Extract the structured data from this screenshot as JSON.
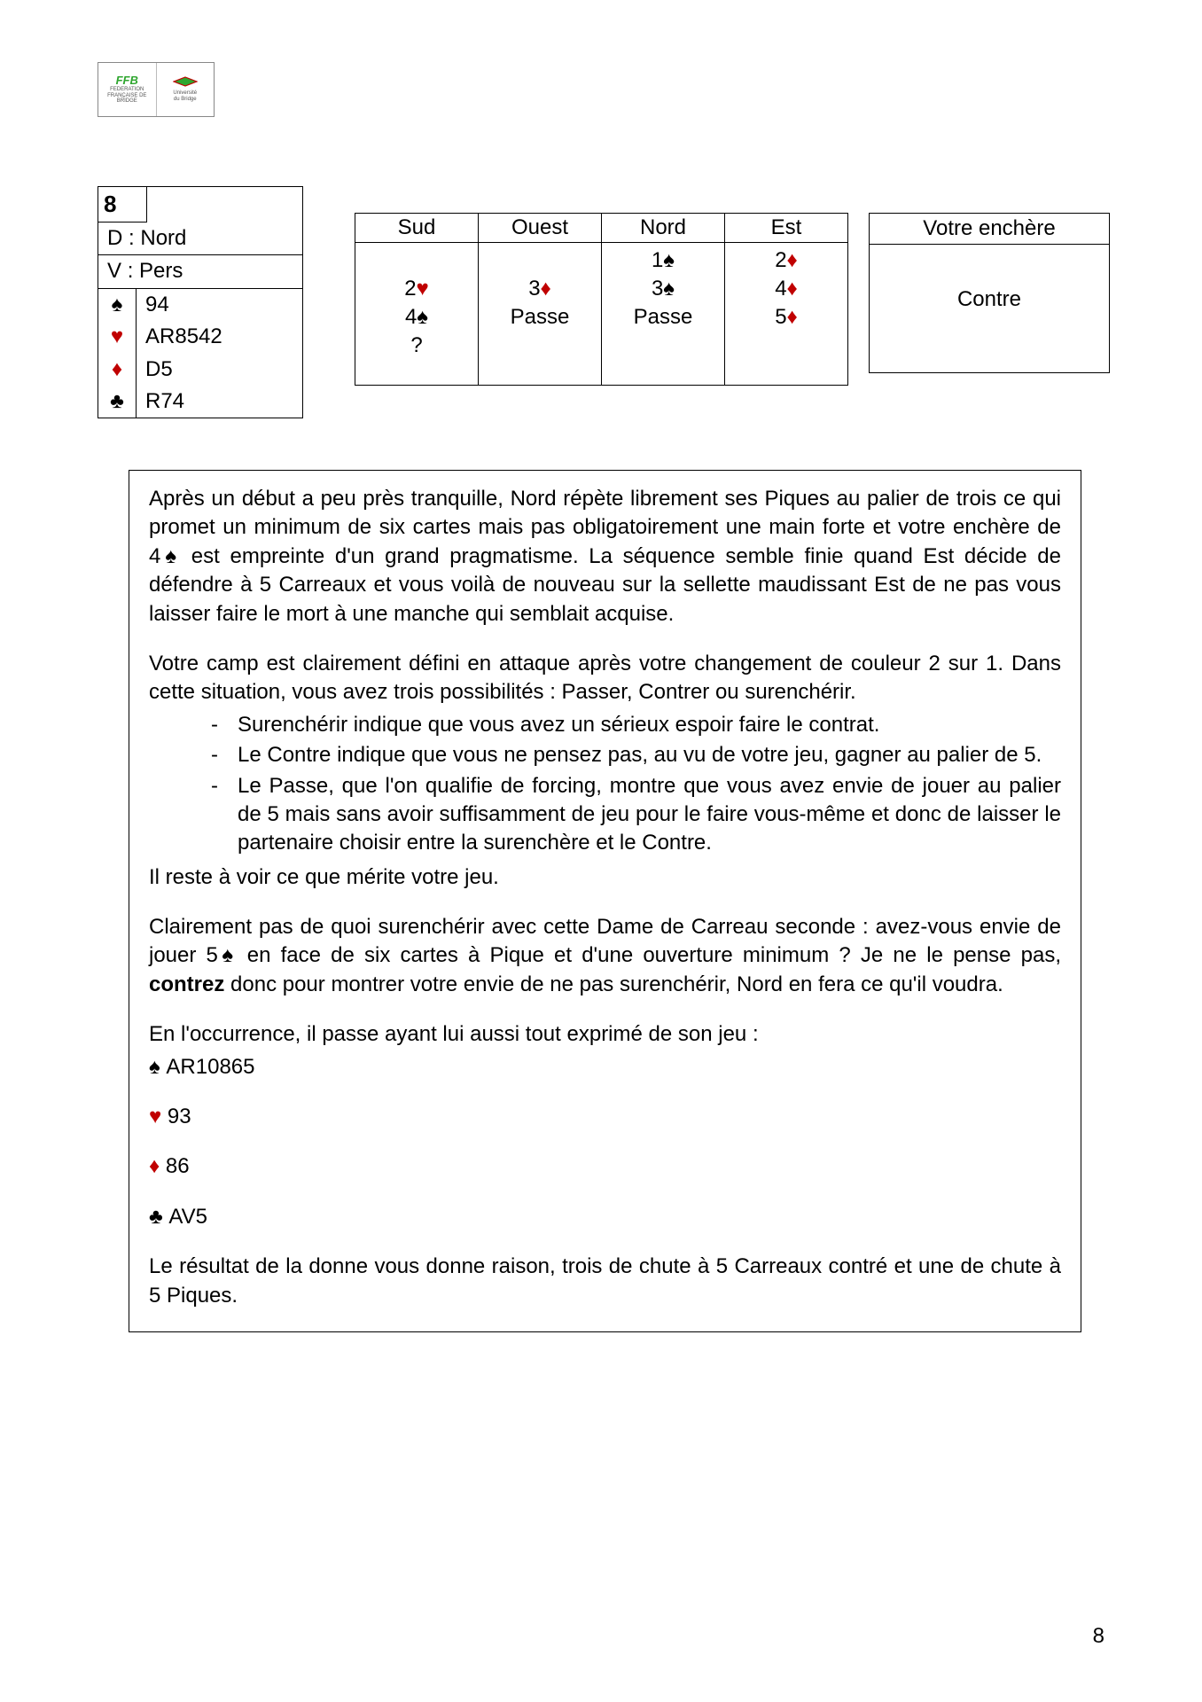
{
  "colors": {
    "red_suit": "#c00000",
    "black_suit": "#000000",
    "logo_green": "#2fa62f",
    "border": "#000000",
    "text": "#000000",
    "background": "#ffffff"
  },
  "typography": {
    "body_fontsize_pt": 18,
    "board_fontsize_pt": 20,
    "family": "Verdana"
  },
  "suit_glyphs": {
    "spade": "♠",
    "heart": "♥",
    "diamond": "♦",
    "club": "♣"
  },
  "logo": {
    "ffb_mark": "FFB",
    "ffb_caption": "FEDERATION FRANÇAISE DE BRIDGE",
    "uni_line1": "Université",
    "uni_line2": "du Bridge"
  },
  "hand_box": {
    "board_number": "8",
    "dealer_label": "D",
    "dealer_value": "Nord",
    "vul_label": "V",
    "vul_value": "Pers",
    "suits": [
      {
        "suit": "spade",
        "cards": "94"
      },
      {
        "suit": "heart",
        "cards": "AR8542"
      },
      {
        "suit": "diamond",
        "cards": "D5"
      },
      {
        "suit": "club",
        "cards": "R74"
      }
    ]
  },
  "bidding": {
    "headers": [
      "Sud",
      "Ouest",
      "Nord",
      "Est"
    ],
    "rows": [
      [
        {
          "text": ""
        },
        {
          "text": ""
        },
        {
          "text": "1",
          "suit": "spade"
        },
        {
          "text": "2",
          "suit": "diamond"
        }
      ],
      [
        {
          "text": "2",
          "suit": "heart"
        },
        {
          "text": "3",
          "suit": "diamond"
        },
        {
          "text": "3",
          "suit": "spade"
        },
        {
          "text": "4",
          "suit": "diamond"
        }
      ],
      [
        {
          "text": "4",
          "suit": "spade"
        },
        {
          "text": "Passe"
        },
        {
          "text": "Passe"
        },
        {
          "text": "5",
          "suit": "diamond"
        }
      ],
      [
        {
          "text": "?"
        },
        {
          "text": ""
        },
        {
          "text": ""
        },
        {
          "text": ""
        }
      ]
    ]
  },
  "your_bid": {
    "header": "Votre enchère",
    "value": "Contre"
  },
  "analysis": {
    "p1_a": "Après un début a peu près tranquille, Nord répète librement ses Piques au palier de trois ce qui promet un minimum de six cartes mais pas obligatoirement une main forte et votre enchère de 4",
    "p1_b": " est empreinte d'un grand pragmatisme. La séquence semble finie quand Est décide de défendre à 5 Carreaux et vous voilà de nouveau sur la sellette maudissant Est de ne pas vous laisser faire le mort à une manche qui semblait acquise.",
    "p2": "Votre camp est clairement défini en attaque après votre changement de couleur 2 sur 1. Dans cette situation, vous avez trois possibilités : Passer, Contrer ou surenchérir.",
    "li1": "Surenchérir indique que vous avez un sérieux espoir faire le contrat.",
    "li2": "Le Contre indique que vous ne pensez pas, au vu de votre jeu, gagner au palier de 5.",
    "li3": "Le Passe, que l'on qualifie de forcing, montre que vous avez envie de jouer au palier de 5 mais sans avoir suffisamment de jeu pour le faire vous-même et donc de laisser le partenaire choisir entre la surenchère et le Contre.",
    "after_list": "Il reste à voir ce que mérite votre jeu.",
    "p3_a": "Clairement pas de quoi surenchérir avec cette Dame de Carreau seconde : avez-vous envie de jouer 5",
    "p3_b": " en face de six cartes à Pique et d'une ouverture minimum ? Je ne le pense pas, ",
    "p3_bold": "contrez",
    "p3_c": " donc pour montrer votre envie de ne pas surenchérir, Nord en fera ce qu'il voudra.",
    "p4": "En l'occurrence, il passe ayant lui aussi tout exprimé de son jeu :",
    "nord_hand": [
      {
        "suit": "spade",
        "cards": "AR10865"
      },
      {
        "suit": "heart",
        "cards": "93"
      },
      {
        "suit": "diamond",
        "cards": "86"
      },
      {
        "suit": "club",
        "cards": "AV5"
      }
    ],
    "p5": "Le résultat de la donne vous donne raison, trois de chute à 5 Carreaux contré et une de chute à 5 Piques."
  },
  "page_number": "8"
}
